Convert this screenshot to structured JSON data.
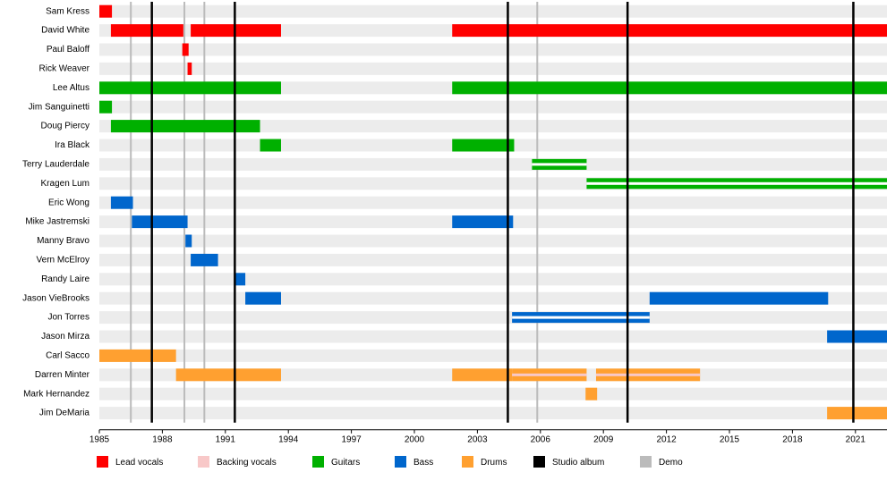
{
  "chart_data": {
    "type": "timeline",
    "xlim": [
      1985,
      2022.5
    ],
    "xticks": [
      1985,
      1988,
      1991,
      1994,
      1997,
      2000,
      2003,
      2006,
      2009,
      2012,
      2015,
      2018,
      2021
    ],
    "series": [
      {
        "name": "Lead vocals",
        "color": "#ff0000"
      },
      {
        "name": "Backing vocals",
        "color": "#f8c8c8"
      },
      {
        "name": "Guitars",
        "color": "#00b000"
      },
      {
        "name": "Bass",
        "color": "#0066cc"
      },
      {
        "name": "Drums",
        "color": "#ffa030"
      },
      {
        "name": "Studio album",
        "color": "#000000"
      },
      {
        "name": "Demo",
        "color": "#bbbbbb"
      }
    ],
    "events": [
      {
        "kind": "Demo",
        "x": 1986.5
      },
      {
        "kind": "Demo",
        "x": 1989.05
      },
      {
        "kind": "Demo",
        "x": 1990
      },
      {
        "kind": "Demo",
        "x": 2005.85
      },
      {
        "kind": "Studio album",
        "x": 1987.5
      },
      {
        "kind": "Studio album",
        "x": 1991.45
      },
      {
        "kind": "Studio album",
        "x": 2004.45
      },
      {
        "kind": "Studio album",
        "x": 2010.15
      },
      {
        "kind": "Studio album",
        "x": 2020.9
      }
    ],
    "members": [
      {
        "name": "Sam Kress",
        "spans": [
          {
            "role": "Lead vocals",
            "start": 1985,
            "end": 1985.6
          }
        ]
      },
      {
        "name": "David White",
        "spans": [
          {
            "role": "Lead vocals",
            "start": 1985.55,
            "end": 1989.0
          },
          {
            "role": "Lead vocals",
            "start": 1989.35,
            "end": 1993.65
          },
          {
            "role": "Lead vocals",
            "start": 2001.8,
            "end": 2022.5
          }
        ]
      },
      {
        "name": "Paul Baloff",
        "spans": [
          {
            "role": "Lead vocals",
            "start": 1988.95,
            "end": 1989.25
          }
        ]
      },
      {
        "name": "Rick Weaver",
        "spans": [
          {
            "role": "Lead vocals",
            "start": 1989.2,
            "end": 1989.4
          }
        ]
      },
      {
        "name": "Lee Altus",
        "spans": [
          {
            "role": "Guitars",
            "start": 1985,
            "end": 1993.65
          },
          {
            "role": "Guitars",
            "start": 2001.8,
            "end": 2022.5
          }
        ]
      },
      {
        "name": "Jim Sanguinetti",
        "spans": [
          {
            "role": "Guitars",
            "start": 1985,
            "end": 1985.6
          }
        ]
      },
      {
        "name": "Doug Piercy",
        "spans": [
          {
            "role": "Guitars",
            "start": 1985.55,
            "end": 1992.65
          }
        ]
      },
      {
        "name": "Ira Black",
        "spans": [
          {
            "role": "Guitars",
            "start": 1992.65,
            "end": 1993.65
          },
          {
            "role": "Guitars",
            "start": 2001.8,
            "end": 2004.75
          }
        ]
      },
      {
        "name": "Terry Lauderdale",
        "spans": [
          {
            "role": "Guitars",
            "start": 2005.6,
            "end": 2008.2,
            "style": "double"
          }
        ]
      },
      {
        "name": "Kragen Lum",
        "spans": [
          {
            "role": "Guitars",
            "start": 2008.2,
            "end": 2022.5,
            "style": "double"
          }
        ]
      },
      {
        "name": "Eric Wong",
        "spans": [
          {
            "role": "Bass",
            "start": 1985.55,
            "end": 1986.6
          }
        ]
      },
      {
        "name": "Mike Jastremski",
        "spans": [
          {
            "role": "Bass",
            "start": 1986.55,
            "end": 1989.2
          },
          {
            "role": "Bass",
            "start": 2001.8,
            "end": 2004.7
          }
        ]
      },
      {
        "name": "Manny Bravo",
        "spans": [
          {
            "role": "Bass",
            "start": 1989.1,
            "end": 1989.4
          }
        ]
      },
      {
        "name": "Vern McElroy",
        "spans": [
          {
            "role": "Bass",
            "start": 1989.35,
            "end": 1990.65
          }
        ]
      },
      {
        "name": "Randy Laire",
        "spans": [
          {
            "role": "Bass",
            "start": 1991.45,
            "end": 1991.95
          }
        ]
      },
      {
        "name": "Jason VieBrooks",
        "spans": [
          {
            "role": "Bass",
            "start": 1991.95,
            "end": 1993.65
          },
          {
            "role": "Bass",
            "start": 2011.2,
            "end": 2019.7
          }
        ]
      },
      {
        "name": "Jon Torres",
        "spans": [
          {
            "role": "Bass",
            "start": 2004.65,
            "end": 2011.2,
            "style": "double"
          }
        ]
      },
      {
        "name": "Jason Mirza",
        "spans": [
          {
            "role": "Bass",
            "start": 2019.65,
            "end": 2022.5
          }
        ]
      },
      {
        "name": "Carl Sacco",
        "spans": [
          {
            "role": "Drums",
            "start": 1985,
            "end": 1988.65
          }
        ]
      },
      {
        "name": "Darren Minter",
        "spans": [
          {
            "role": "Drums",
            "start": 1988.65,
            "end": 1993.65
          },
          {
            "role": "Drums",
            "start": 2001.8,
            "end": 2004.65
          },
          {
            "role": "Drums",
            "start": 2004.65,
            "end": 2008.2,
            "inner": "Backing vocals"
          },
          {
            "role": "Drums",
            "start": 2008.65,
            "end": 2013.6,
            "inner": "Backing vocals"
          }
        ]
      },
      {
        "name": "Mark Hernandez",
        "spans": [
          {
            "role": "Drums",
            "start": 2008.15,
            "end": 2008.7
          }
        ]
      },
      {
        "name": "Jim DeMaria",
        "spans": [
          {
            "role": "Drums",
            "start": 2019.65,
            "end": 2022.5
          }
        ]
      }
    ]
  }
}
